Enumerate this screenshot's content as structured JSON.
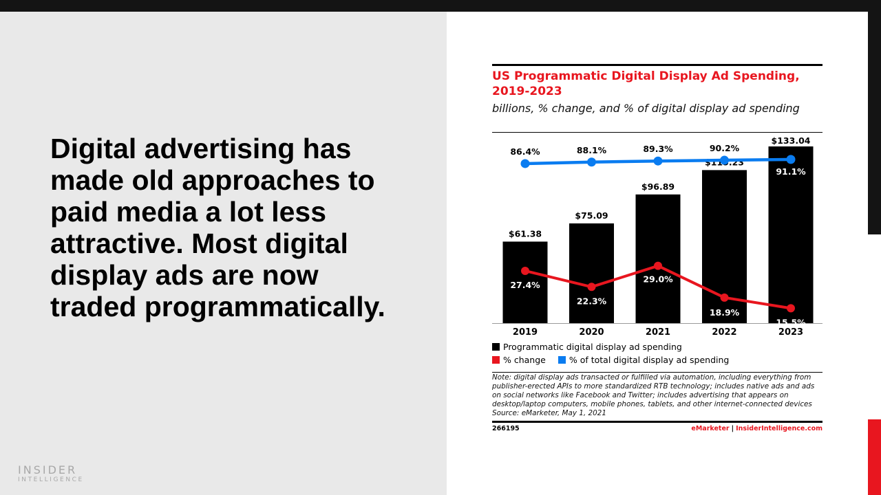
{
  "slide": {
    "headline": "Digital advertising has made old approaches to paid media a lot less attractive. Most digital display ads are now traded programmatically.",
    "logo_top": "INSIDER",
    "logo_bottom": "INTELLIGENCE"
  },
  "colors": {
    "bar": "#000000",
    "change_line": "#e8161f",
    "share_line": "#0a7cf0",
    "title": "#e8161f",
    "left_panel": "#e9e9e9",
    "topbar": "#141414"
  },
  "chart_data": {
    "type": "bar",
    "title": "US Programmatic Digital Display Ad Spending, 2019-2023",
    "subtitle": "billions, % change, and % of digital display ad spending",
    "categories": [
      "2019",
      "2020",
      "2021",
      "2022",
      "2023"
    ],
    "series": [
      {
        "name": "Programmatic digital display ad spending",
        "kind": "bar",
        "color": "#000000",
        "values": [
          61.38,
          75.09,
          96.89,
          115.23,
          133.04
        ],
        "labels": [
          "$61.38",
          "$75.09",
          "$96.89",
          "$115.23",
          "$133.04"
        ]
      },
      {
        "name": "% change",
        "kind": "line",
        "color": "#e8161f",
        "values": [
          27.4,
          22.3,
          29.0,
          18.9,
          15.5
        ],
        "labels": [
          "27.4%",
          "22.3%",
          "29.0%",
          "18.9%",
          "15.5%"
        ]
      },
      {
        "name": "% of total digital display ad spending",
        "kind": "line",
        "color": "#0a7cf0",
        "values": [
          86.4,
          88.1,
          89.3,
          90.2,
          91.1
        ],
        "labels": [
          "86.4%",
          "88.1%",
          "89.3%",
          "90.2%",
          "91.1%"
        ]
      }
    ],
    "legend": [
      [
        "Programmatic digital display ad spending"
      ],
      [
        "% change",
        "% of total digital display ad spending"
      ]
    ],
    "legend_placement": "bottom",
    "grid": false,
    "note": "Note: digital display ads transacted or fulfilled via automation, including everything from publisher-erected APIs to more standardized RTB technology; includes native ads and ads on social networks like Facebook and Twitter; includes advertising that appears on desktop/laptop computers, mobile phones, tablets, and other internet-connected devices",
    "source": "Source: eMarketer, May 1, 2021",
    "chart_id": "266195",
    "brand_left": "eMarketer",
    "brand_sep": "|",
    "brand_right": "InsiderIntelligence.com"
  }
}
